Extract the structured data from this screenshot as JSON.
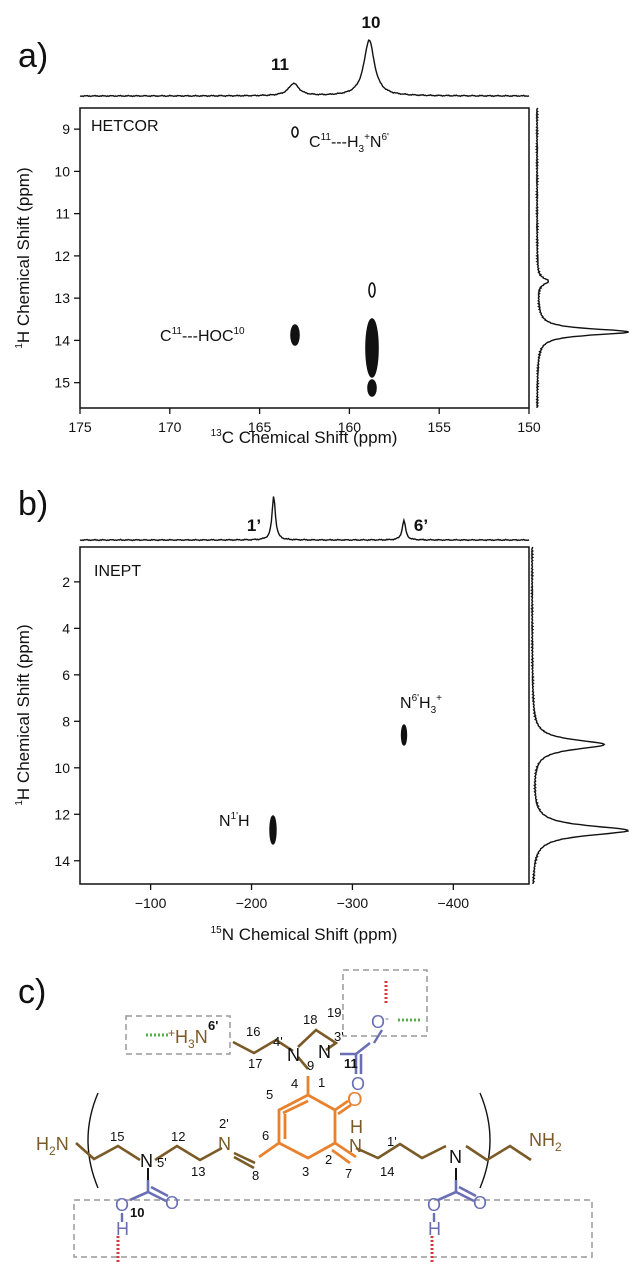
{
  "colors": {
    "ink": "#111111",
    "brown": "#7a5a26",
    "orange": "#e9822e",
    "blue": "#6a6fb5",
    "red": "#d63a3a",
    "green": "#58b04a",
    "dash": "#999999"
  },
  "panel_a": {
    "letter": "a)",
    "experiment": "HETCOR",
    "xlabel_sup": "13",
    "xlabel_main": "C Chemical Shift (ppm)",
    "ylabel_sup": "1",
    "ylabel_main": "H Chemical Shift (ppm)",
    "peak_labels": [
      {
        "text": "11"
      },
      {
        "text": "10"
      }
    ],
    "annotations": {
      "top_C": "C",
      "top_C_sup": "11",
      "top_mid": "---H",
      "top_sub": "3",
      "top_plus": "+",
      "top_N": "N",
      "top_N_sup": "6'",
      "left_C": "C",
      "left_C_sup": "11",
      "left_mid": "---HOC",
      "left_sup": "10"
    }
  },
  "panel_b": {
    "letter": "b)",
    "experiment": "INEPT",
    "xlabel_sup": "15",
    "xlabel_main": "N Chemical Shift (ppm)",
    "ylabel_sup": "1",
    "ylabel_main": "H Chemical Shift (ppm)",
    "peak_labels": [
      {
        "text": "1’"
      },
      {
        "text": "6’"
      }
    ],
    "annotations": {
      "n1_N": "N",
      "n1_sup": "1'",
      "n1_H": "H",
      "n6_N": "N",
      "n6_sup": "6'",
      "n6_H": "H",
      "n6_sub": "3",
      "n6_plus": "+"
    }
  },
  "panel_c": {
    "letter": "c)",
    "atoms": {
      "H2N_H": "H",
      "H2N_sub": "2",
      "H2N_N": "N",
      "NH2_N": "NH",
      "NH2_sub": "2",
      "N5": "N",
      "N2p": "N",
      "N1p": "N",
      "N1p_H": "H",
      "Nright": "N",
      "N4p": "N",
      "N3p": "N",
      "O_keto": "O",
      "plusH3N_plus": "+",
      "plusH3N_H": "H",
      "plusH3N_sub": "3",
      "plusH3N_N": "N",
      "O_minus": "O",
      "O_minus_sup": "-",
      "O_carb": "O",
      "O_carb2": "O",
      "O_carb3": "O",
      "O_left": "O",
      "H_left": "H",
      "O_right": "O",
      "H_right": "H"
    },
    "numbers": {
      "n1": "1",
      "n2": "2",
      "n3": "3",
      "n4": "4",
      "n5": "5",
      "n6": "6",
      "n7": "7",
      "n8": "8",
      "n9": "9",
      "n10": "10",
      "n11": "11",
      "n12": "12",
      "n13": "13",
      "n14": "14",
      "n15": "15",
      "n16": "16",
      "n17": "17",
      "n18": "18",
      "n19": "19",
      "n1p": "1'",
      "n2p": "2'",
      "n3p": "3'",
      "n4p": "4'",
      "n5p": "5'",
      "n6p": "6'"
    }
  },
  "chart_data": [
    {
      "type": "heatmap",
      "title": "HETCOR",
      "xlabel": "13C Chemical Shift (ppm)",
      "ylabel": "1H Chemical Shift (ppm)",
      "xlim": [
        175,
        150
      ],
      "ylim": [
        8.5,
        15.6
      ],
      "x_ticks": [
        175,
        170,
        165,
        160,
        155,
        150
      ],
      "y_ticks": [
        9,
        10,
        11,
        12,
        13,
        14,
        15
      ],
      "top_projection_peaks": [
        {
          "x": 163.1,
          "height": 0.22,
          "label": "11"
        },
        {
          "x": 158.9,
          "height": 1.0,
          "label": "10"
        }
      ],
      "right_projection_peaks": [
        {
          "y": 13.8,
          "height": 1.0
        },
        {
          "y": 12.6,
          "height": 0.12
        }
      ],
      "cross_peaks": [
        {
          "x": 163.1,
          "y": 8.95,
          "label": "C11---H3+N6'"
        },
        {
          "x": 163.1,
          "y": 13.75,
          "label": "C11---HOC10"
        },
        {
          "x": 158.9,
          "y": 12.6
        },
        {
          "x": 158.9,
          "y": 13.9
        }
      ]
    },
    {
      "type": "heatmap",
      "title": "INEPT",
      "xlabel": "15N Chemical Shift (ppm)",
      "ylabel": "1H Chemical Shift (ppm)",
      "xlim": [
        -30,
        -475
      ],
      "ylim": [
        0.5,
        15
      ],
      "x_ticks": [
        -100,
        -200,
        -300,
        -400
      ],
      "y_ticks": [
        2,
        4,
        6,
        8,
        10,
        12,
        14
      ],
      "top_projection_peaks": [
        {
          "x": -222,
          "height": 1.0,
          "label": "1’"
        },
        {
          "x": -351,
          "height": 0.45,
          "label": "6’"
        }
      ],
      "right_projection_peaks": [
        {
          "y": 9.0,
          "height": 0.75
        },
        {
          "y": 12.7,
          "height": 1.0
        }
      ],
      "cross_peaks": [
        {
          "x": -222,
          "y": 12.8,
          "label": "N1'H"
        },
        {
          "x": -351,
          "y": 8.8,
          "label": "N6'H3+"
        }
      ]
    }
  ]
}
